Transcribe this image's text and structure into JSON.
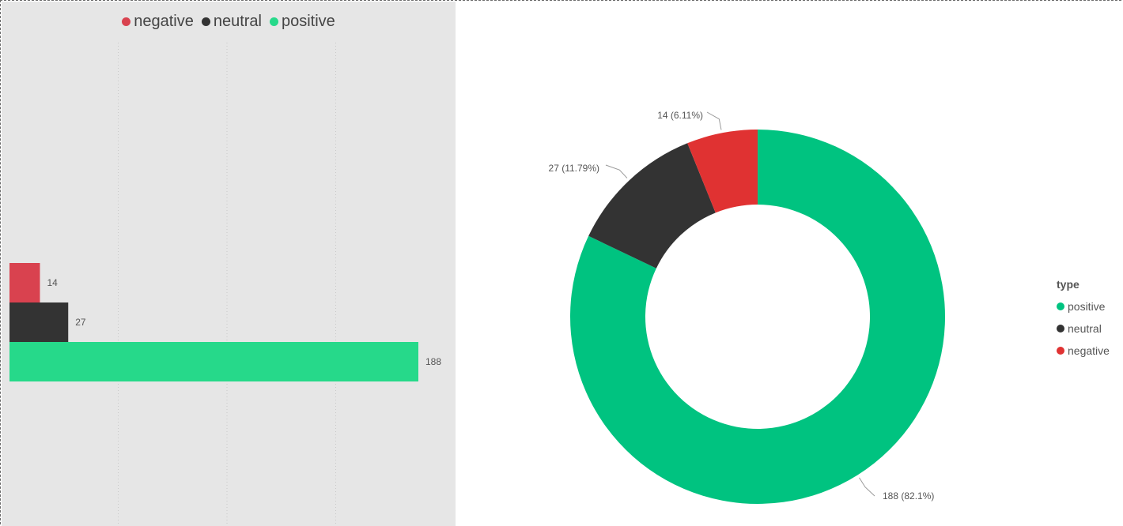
{
  "colors": {
    "negative_bar": "#d9424f",
    "neutral": "#333333",
    "positive_bar": "#26d98a",
    "positive_donut": "#00c380",
    "negative_donut": "#e03232",
    "panel_bg": "#e6e6e6"
  },
  "bar_legend": [
    {
      "label": "negative",
      "color": "#d9424f"
    },
    {
      "label": "neutral",
      "color": "#333333"
    },
    {
      "label": "positive",
      "color": "#26d98a"
    }
  ],
  "donut_legend": {
    "title": "type",
    "items": [
      {
        "label": "positive",
        "color": "#00c380"
      },
      {
        "label": "neutral",
        "color": "#333333"
      },
      {
        "label": "negative",
        "color": "#e03232"
      }
    ]
  },
  "chart_data": [
    {
      "type": "bar",
      "orientation": "horizontal",
      "legend_position": "top-center",
      "series": [
        {
          "name": "negative",
          "values": [
            14
          ],
          "data_label": "14"
        },
        {
          "name": "neutral",
          "values": [
            27
          ],
          "data_label": "27"
        },
        {
          "name": "positive",
          "values": [
            188
          ],
          "data_label": "188"
        }
      ],
      "xlim": [
        0,
        200
      ],
      "grid": true
    },
    {
      "type": "pie",
      "donut": true,
      "legend_title": "type",
      "legend_position": "right",
      "slices": [
        {
          "label": "positive",
          "value": 188,
          "percent_label": "188 (82.1%)"
        },
        {
          "label": "neutral",
          "value": 27,
          "percent_label": "27 (11.79%)"
        },
        {
          "label": "negative",
          "value": 14,
          "percent_label": "14 (6.11%)"
        }
      ]
    }
  ]
}
